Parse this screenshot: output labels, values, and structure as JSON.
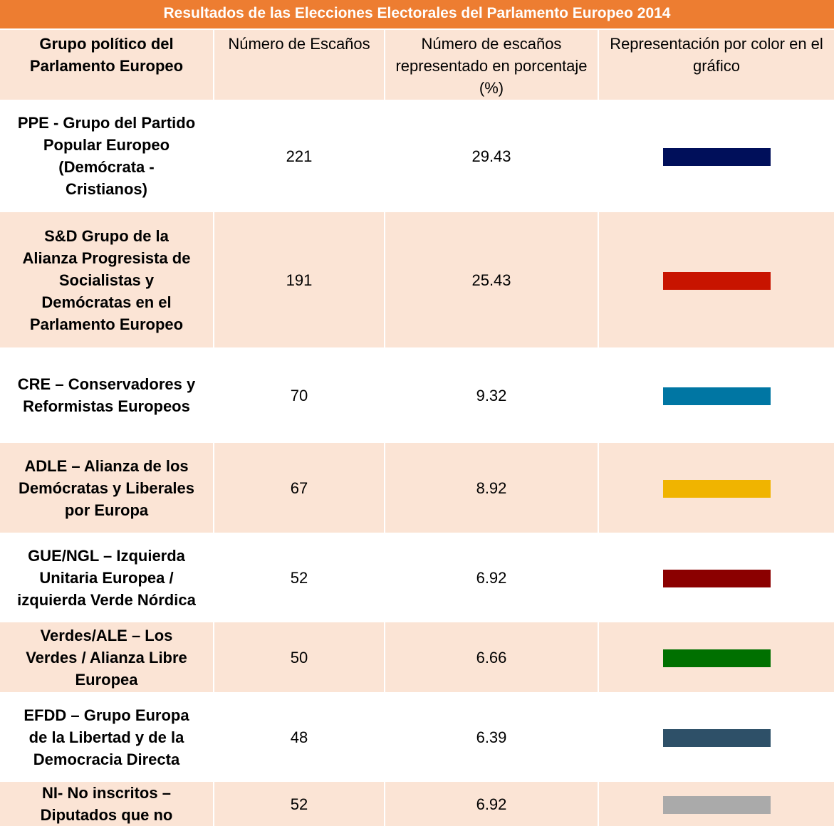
{
  "title": "Resultados de las Elecciones Electorales del Parlamento Europeo 2014",
  "table": {
    "headers": [
      "Grupo político del Parlamento Europeo",
      "Número de Escaños",
      "Número de escaños representado en porcentaje (%)",
      "Representación por color en el gráfico"
    ],
    "rows": [
      {
        "group": "PPE - Grupo del Partido Popular Europeo (Demócrata - Cristianos)",
        "seats": 221,
        "percent": 29.43,
        "color": "#000f5a"
      },
      {
        "group": "S&D Grupo de la Alianza Progresista de Socialistas y Demócratas en el Parlamento Europeo",
        "seats": 191,
        "percent": 25.43,
        "color": "#c81400"
      },
      {
        "group": "CRE – Conservadores y Reformistas Europeos",
        "seats": 70,
        "percent": 9.32,
        "color": "#0076a3"
      },
      {
        "group": "ADLE – Alianza de los Demócratas y Liberales por Europa",
        "seats": 67,
        "percent": 8.92,
        "color": "#f0b400"
      },
      {
        "group": "GUE/NGL – Izquierda Unitaria Europea / izquierda Verde Nórdica",
        "seats": 52,
        "percent": 6.92,
        "color": "#8b0000"
      },
      {
        "group": "Verdes/ALE – Los Verdes / Alianza Libre Europea",
        "seats": 50,
        "percent": 6.66,
        "color": "#007000"
      },
      {
        "group": "EFDD – Grupo Europa de la Libertad y de la Democracia Directa",
        "seats": 48,
        "percent": 6.39,
        "color": "#2e5068"
      },
      {
        "group": "NI- No inscritos – Diputados que no",
        "seats": 52,
        "percent": 6.92,
        "color": "#aaaaaa"
      }
    ]
  }
}
